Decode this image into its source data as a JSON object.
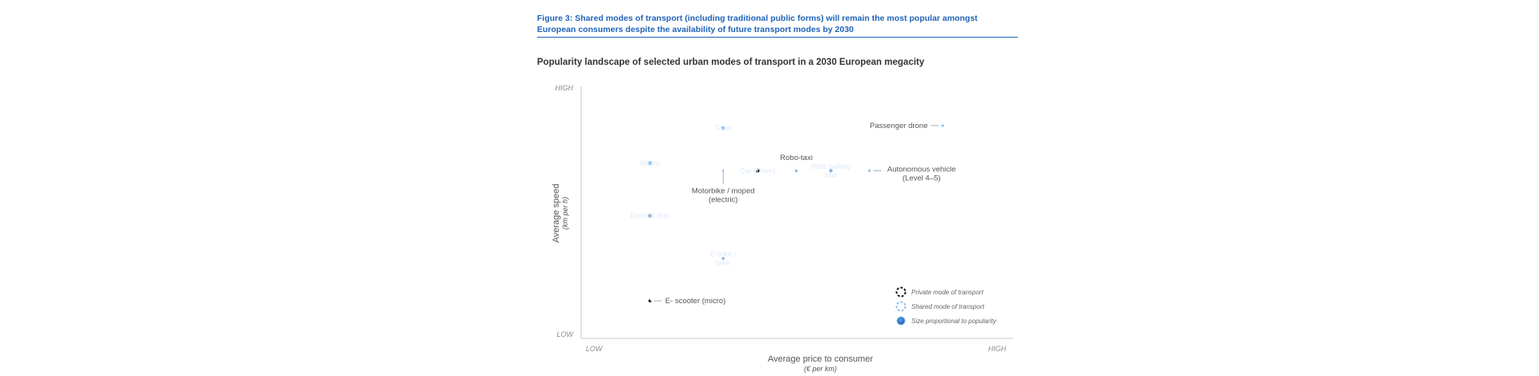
{
  "header": {
    "figure_title": "Figure 3: Shared modes of transport (including traditional public forms) will remain the most popular amongst European consumers despite the availability of future transport modes by 2030",
    "subtitle": "Popularity landscape of selected urban modes of transport in a 2030 European megacity"
  },
  "chart_data": {
    "type": "scatter",
    "xlabel": "Average price to consumer",
    "xunit": "(€ per km)",
    "ylabel": "Average speed",
    "yunit": "(km per h)",
    "x_ticks": [
      "LOW",
      "HIGH"
    ],
    "y_ticks": [
      "HIGH",
      "LOW"
    ],
    "xlim": [
      0,
      100
    ],
    "ylim": [
      0,
      100
    ],
    "size_encodes": "popularity",
    "points": [
      {
        "label": "Train",
        "x": 33,
        "y": 84,
        "size": 32,
        "mode": "shared",
        "label_pos": "inside"
      },
      {
        "label": "Metro",
        "x": 16,
        "y": 70,
        "size": 33,
        "mode": "shared",
        "label_pos": "inside"
      },
      {
        "label": "Electric bus",
        "x": 16,
        "y": 49,
        "size": 33,
        "mode": "shared",
        "label_pos": "inside"
      },
      {
        "label": "Motorbike / moped\n(electric)",
        "x": 33,
        "y": 67,
        "size": 8,
        "mode": "shared",
        "label_pos": "below"
      },
      {
        "label": "Car (drive)",
        "x": 41,
        "y": 67,
        "size": 26,
        "mode": "private",
        "label_pos": "inside"
      },
      {
        "label": "Robo-taxi",
        "x": 50,
        "y": 67,
        "size": 20,
        "mode": "shared",
        "label_pos": "above"
      },
      {
        "label": "Ride hailing\ntaxi",
        "x": 58,
        "y": 67,
        "size": 27,
        "mode": "shared",
        "label_pos": "inside"
      },
      {
        "label": "Autonomous vehicle\n(Level 4–5)",
        "x": 67,
        "y": 67,
        "size": 16,
        "mode": "shared",
        "label_pos": "right"
      },
      {
        "label": "Passenger drone",
        "x": 84,
        "y": 85,
        "size": 13,
        "mode": "shared",
        "label_pos": "left"
      },
      {
        "label": "E-trike /\nbike",
        "x": 33,
        "y": 32,
        "size": 22,
        "mode": "shared",
        "label_pos": "inside"
      },
      {
        "label": "E- scooter (micro)",
        "x": 16,
        "y": 15,
        "size": 17,
        "mode": "private",
        "label_pos": "right"
      }
    ],
    "legend": [
      {
        "label": "Private mode of transport",
        "symbol": "private"
      },
      {
        "label": "Shared mode of transport",
        "symbol": "shared"
      },
      {
        "label": "Size proportional to popularity",
        "symbol": "size"
      }
    ],
    "legend_position": "bottom-right",
    "grid": false,
    "colors": {
      "bubble_center": "#5aa0e6",
      "bubble_edge": "#1c56a8",
      "private_outline": "#1a1a1a",
      "shared_outline": "#8cc2ee",
      "overlap": "#38b6ec"
    }
  }
}
